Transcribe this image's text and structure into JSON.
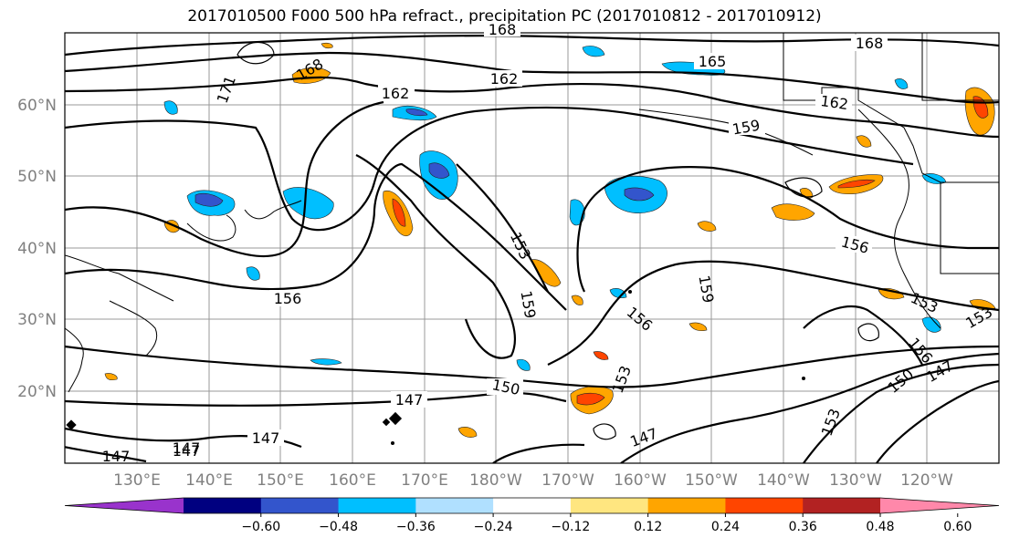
{
  "title": "2017010500 F000 500 hPa refract., precipitation PC (2017010812 - 2017010912)",
  "lat_labels": [
    "60°N",
    "50°N",
    "40°N",
    "30°N",
    "20°N"
  ],
  "lon_labels": [
    "130°E",
    "140°E",
    "150°E",
    "160°E",
    "170°E",
    "180°W",
    "170°W",
    "160°W",
    "150°W",
    "140°W",
    "130°W",
    "120°W"
  ],
  "contour_labels": [
    "168",
    "171",
    "162",
    "162",
    "168",
    "165",
    "168",
    "162",
    "159",
    "156",
    "153",
    "159",
    "159",
    "156",
    "153",
    "156",
    "153",
    "150",
    "147",
    "147",
    "147",
    "147",
    "147",
    "150",
    "153",
    "156",
    "153",
    "147",
    "147"
  ],
  "colorbar": {
    "ticks": [
      "−0.60",
      "−0.48",
      "−0.36",
      "−0.24",
      "−0.12",
      "0.12",
      "0.24",
      "0.36",
      "0.48",
      "0.60"
    ],
    "colors": [
      "#9933cc",
      "#000080",
      "#3355cc",
      "#00bfff",
      "#b0e0ff",
      "#ffffff",
      "#ffe680",
      "#ffa500",
      "#ff4500",
      "#b22222",
      "#ff88aa"
    ]
  }
}
